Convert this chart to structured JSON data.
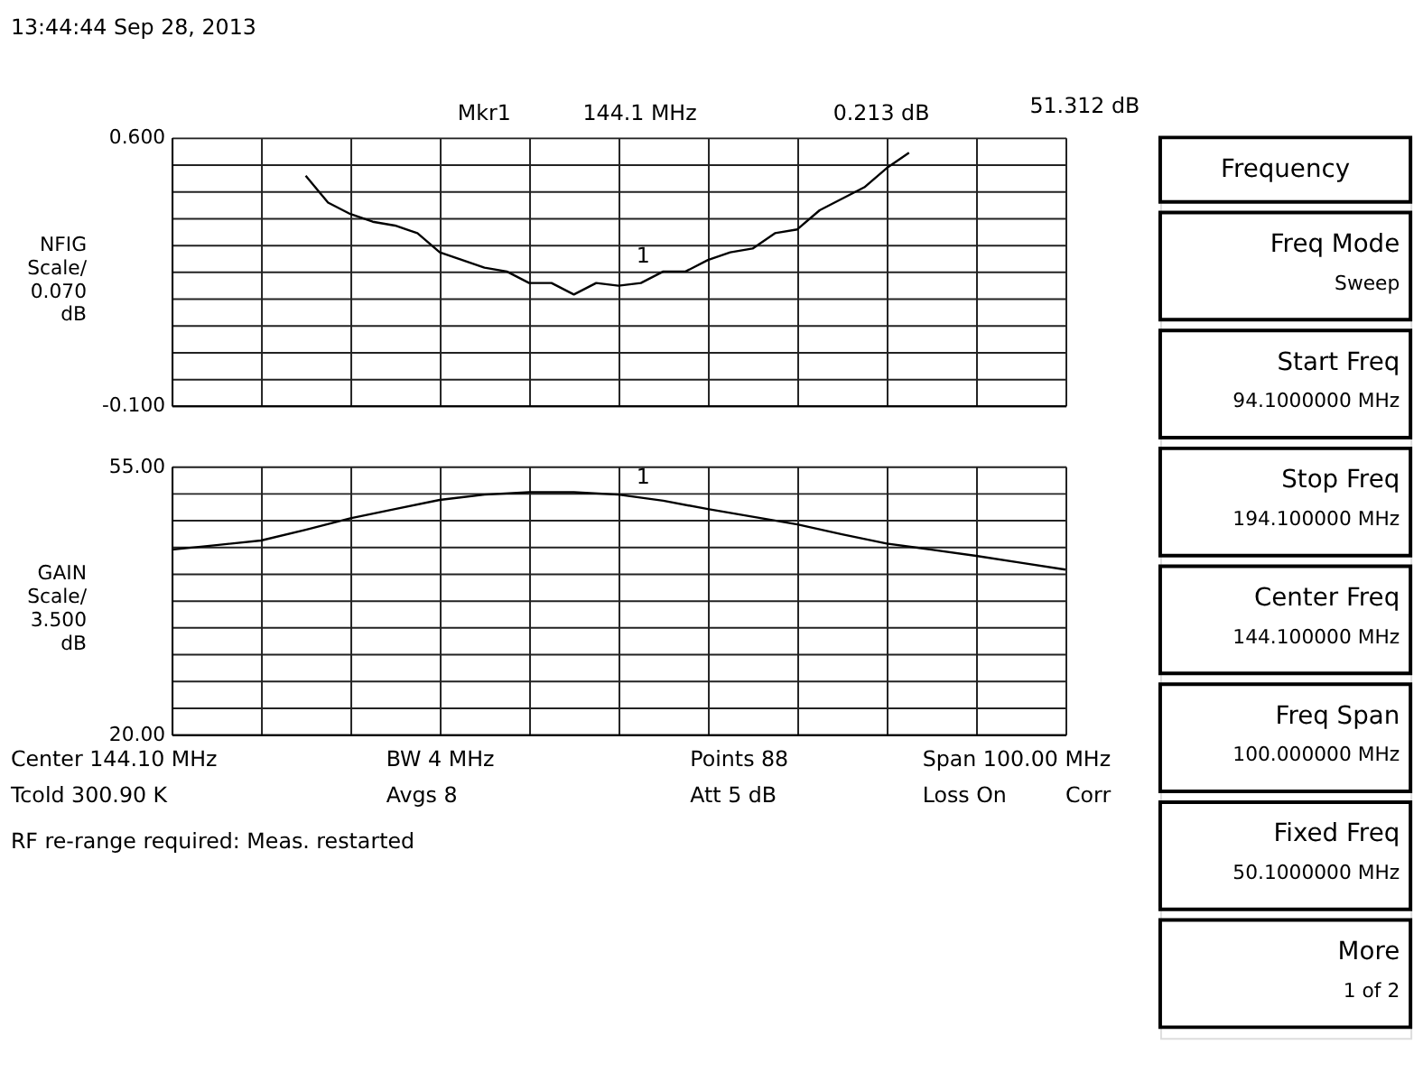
{
  "chart_data": [
    {
      "type": "line",
      "ylabel": "NFIG Scale/ 0.070 dB",
      "categories": [
        null,
        null,
        null,
        null,
        null,
        null,
        null,
        null,
        null,
        null,
        null,
        null,
        null,
        null,
        null,
        null,
        null,
        null,
        null,
        null,
        null,
        null,
        null,
        null,
        null,
        null,
        null,
        null,
        null,
        null,
        null,
        null,
        null,
        null,
        null,
        null,
        null,
        null,
        null,
        null,
        null
      ],
      "ylim": [
        -0.1,
        0.6
      ],
      "yticks": [
        {
          "value": -0.1,
          "label": "-0.100"
        },
        {
          "value": -0.03,
          "label": null
        },
        {
          "value": 0.04,
          "label": null
        },
        {
          "value": 0.11,
          "label": null
        },
        {
          "value": 0.18,
          "label": null
        },
        {
          "value": 0.25,
          "label": null
        },
        {
          "value": 0.32,
          "label": null
        },
        {
          "value": 0.39,
          "label": null
        },
        {
          "value": 0.46,
          "label": null
        },
        {
          "value": 0.53,
          "label": null
        },
        {
          "value": 0.6,
          "label": "0.600"
        }
      ],
      "grid": true,
      "series": [
        {
          "type": "line",
          "color": "#000000",
          "values": [
            null,
            null,
            null,
            null,
            null,
            null,
            0.5,
            0.43,
            0.4,
            0.38,
            0.37,
            0.35,
            0.3,
            0.28,
            0.26,
            0.25,
            0.22,
            0.22,
            0.19,
            0.22,
            0.213,
            0.22,
            0.25,
            0.25,
            0.28,
            0.3,
            0.31,
            0.35,
            0.36,
            0.41,
            0.44,
            0.47,
            0.52,
            0.56,
            null,
            null,
            null,
            null,
            null,
            null,
            null
          ]
        }
      ],
      "annotations": [
        "13:44:44  Sep 28, 2013",
        "Mkr1",
        "144.1 MHz",
        "0.213 dB",
        "51.312 dB",
        "1"
      ]
    },
    {
      "type": "line",
      "ylabel": "GAIN Scale/ 3.500 dB",
      "categories": [
        null,
        null,
        null,
        null,
        null,
        null,
        null,
        null,
        null,
        null,
        null,
        null,
        null,
        null,
        null,
        null,
        null,
        null,
        null,
        null,
        null
      ],
      "ylim": [
        20,
        55
      ],
      "yticks": [
        {
          "value": 20,
          "label": "20.00"
        },
        {
          "value": 23.5,
          "label": null
        },
        {
          "value": 27,
          "label": null
        },
        {
          "value": 30.5,
          "label": null
        },
        {
          "value": 34,
          "label": null
        },
        {
          "value": 37.5,
          "label": null
        },
        {
          "value": 41,
          "label": null
        },
        {
          "value": 44.5,
          "label": null
        },
        {
          "value": 48,
          "label": null
        },
        {
          "value": 51.5,
          "label": null
        },
        {
          "value": 55,
          "label": "55.00"
        }
      ],
      "grid": true,
      "series": [
        {
          "type": "line",
          "color": "#000000",
          "values": [
            44.1,
            44.7,
            45.3,
            46.7,
            48.2,
            49.4,
            50.6,
            51.3,
            51.6,
            51.6,
            51.3,
            50.5,
            49.4,
            48.4,
            47.4,
            46.1,
            44.9,
            44.1,
            43.3,
            42.4,
            41.5
          ]
        }
      ],
      "annotations": [
        "Center 144.10 MHz",
        "BW 4 MHz",
        "Points 88",
        "Span 100.00 MHz",
        "Tcold 300.90 K",
        "Avgs 8",
        "Att 5 dB",
        "Loss On",
        "Corr",
        "RF re-range required: Meas. restarted",
        "1"
      ]
    },
    {
      "type": "other",
      "title": "Frequency",
      "annotations": [
        "Freq Mode",
        "Sweep",
        "Start Freq",
        "94.1000000 MHz",
        "Stop Freq",
        "194.100000 MHz",
        "Center Freq",
        "144.100000 MHz",
        "Freq Span",
        "100.000000 MHz",
        "Fixed Freq",
        "50.1000000 MHz",
        "More",
        "1 of 2"
      ]
    }
  ]
}
